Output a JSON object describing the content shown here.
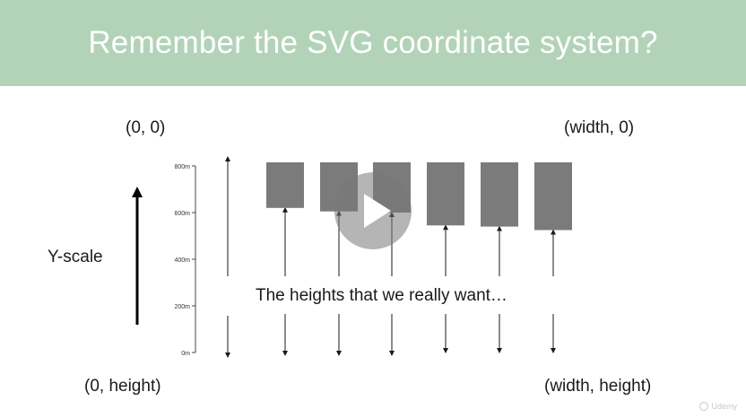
{
  "slide": {
    "title": "Remember the SVG coordinate system?",
    "corner_top_left": "(0, 0)",
    "corner_top_right": "(width, 0)",
    "corner_bottom_left": "(0, height)",
    "corner_bottom_right": "(width, height)",
    "y_scale_label": "Y-scale",
    "caption": "The heights that we really want…",
    "watermark": "Udemy"
  },
  "colors": {
    "header_bg": "#b3d3b8",
    "bar_fill": "#7b7b7b",
    "text": "#1a1a1a"
  },
  "icons": {
    "play": "play-icon",
    "y_scale_arrow": "arrow-up-icon"
  },
  "chart_data": {
    "type": "bar",
    "categories": [
      "",
      "",
      "",
      "",
      "",
      ""
    ],
    "ylim": [
      0,
      800
    ],
    "y_ticks": [
      "0m",
      "200m",
      "400m",
      "600m",
      "800m"
    ],
    "bar_value_ends": [
      620,
      605,
      600,
      545,
      540,
      525
    ],
    "inverted_y": true,
    "grid": false
  }
}
